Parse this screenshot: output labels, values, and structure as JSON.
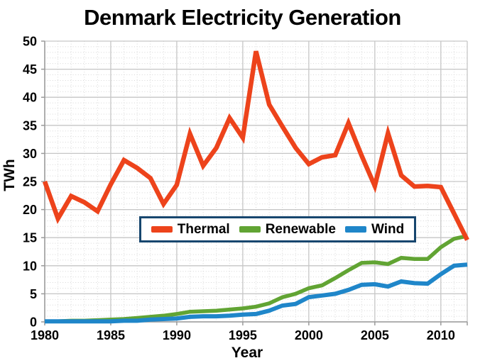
{
  "title": "Denmark Electricity Generation",
  "chart_data": {
    "type": "line",
    "title": "Denmark Electricity Generation",
    "xlabel": "Year",
    "ylabel": "TWh",
    "xlim": [
      1980,
      2012
    ],
    "ylim": [
      0,
      50
    ],
    "x_ticks": [
      1980,
      1985,
      1990,
      1995,
      2000,
      2005,
      2010
    ],
    "x_tick_labels": [
      "1980",
      "1985",
      "1990",
      "1995",
      "2000",
      "2005",
      "2010"
    ],
    "y_ticks": [
      0,
      5,
      10,
      15,
      20,
      25,
      30,
      35,
      40,
      45,
      50
    ],
    "y_tick_labels": [
      "0",
      "5",
      "10",
      "15",
      "20",
      "25",
      "30",
      "35",
      "40",
      "45",
      "50"
    ],
    "grid": "major solid every 5 units, minor dotted every 1 unit (both axes)",
    "legend_position": "boxed, inside plot, center-left",
    "x": [
      1980,
      1981,
      1982,
      1983,
      1984,
      1985,
      1986,
      1987,
      1988,
      1989,
      1990,
      1991,
      1992,
      1993,
      1994,
      1995,
      1996,
      1997,
      1998,
      1999,
      2000,
      2001,
      2002,
      2003,
      2004,
      2005,
      2006,
      2007,
      2008,
      2009,
      2010,
      2011,
      2012
    ],
    "series": [
      {
        "name": "Thermal",
        "color": "#ED431B",
        "values": [
          25.0,
          18.4,
          22.4,
          21.3,
          19.7,
          24.5,
          28.8,
          27.4,
          25.6,
          21.0,
          24.4,
          33.5,
          27.8,
          31.0,
          36.3,
          32.8,
          48.2,
          38.7,
          34.8,
          31.0,
          28.1,
          29.3,
          29.7,
          35.4,
          29.6,
          24.2,
          33.6,
          26.1,
          24.1,
          24.2,
          24.0,
          19.3,
          14.6
        ]
      },
      {
        "name": "Renewable",
        "color": "#61A433",
        "values": [
          0.1,
          0.1,
          0.2,
          0.2,
          0.3,
          0.4,
          0.5,
          0.7,
          0.9,
          1.1,
          1.4,
          1.8,
          1.9,
          2.0,
          2.2,
          2.4,
          2.7,
          3.3,
          4.4,
          5.0,
          6.0,
          6.5,
          7.8,
          9.2,
          10.5,
          10.6,
          10.3,
          11.4,
          11.2,
          11.2,
          13.3,
          14.8,
          15.3
        ]
      },
      {
        "name": "Wind",
        "color": "#1F86C9",
        "values": [
          0.1,
          0.1,
          0.1,
          0.1,
          0.1,
          0.1,
          0.2,
          0.2,
          0.4,
          0.5,
          0.6,
          0.9,
          1.0,
          1.0,
          1.1,
          1.3,
          1.4,
          2.0,
          2.9,
          3.2,
          4.4,
          4.7,
          5.0,
          5.7,
          6.6,
          6.7,
          6.3,
          7.2,
          6.9,
          6.8,
          8.5,
          10.0,
          10.2
        ]
      }
    ],
    "style": {
      "background": "#ffffff",
      "text": "#000000",
      "grid_major": "#c6c6c6",
      "grid_minor": "#d8d8d8",
      "axis": "#9a9a9a",
      "legend_border": "#17466E"
    }
  }
}
